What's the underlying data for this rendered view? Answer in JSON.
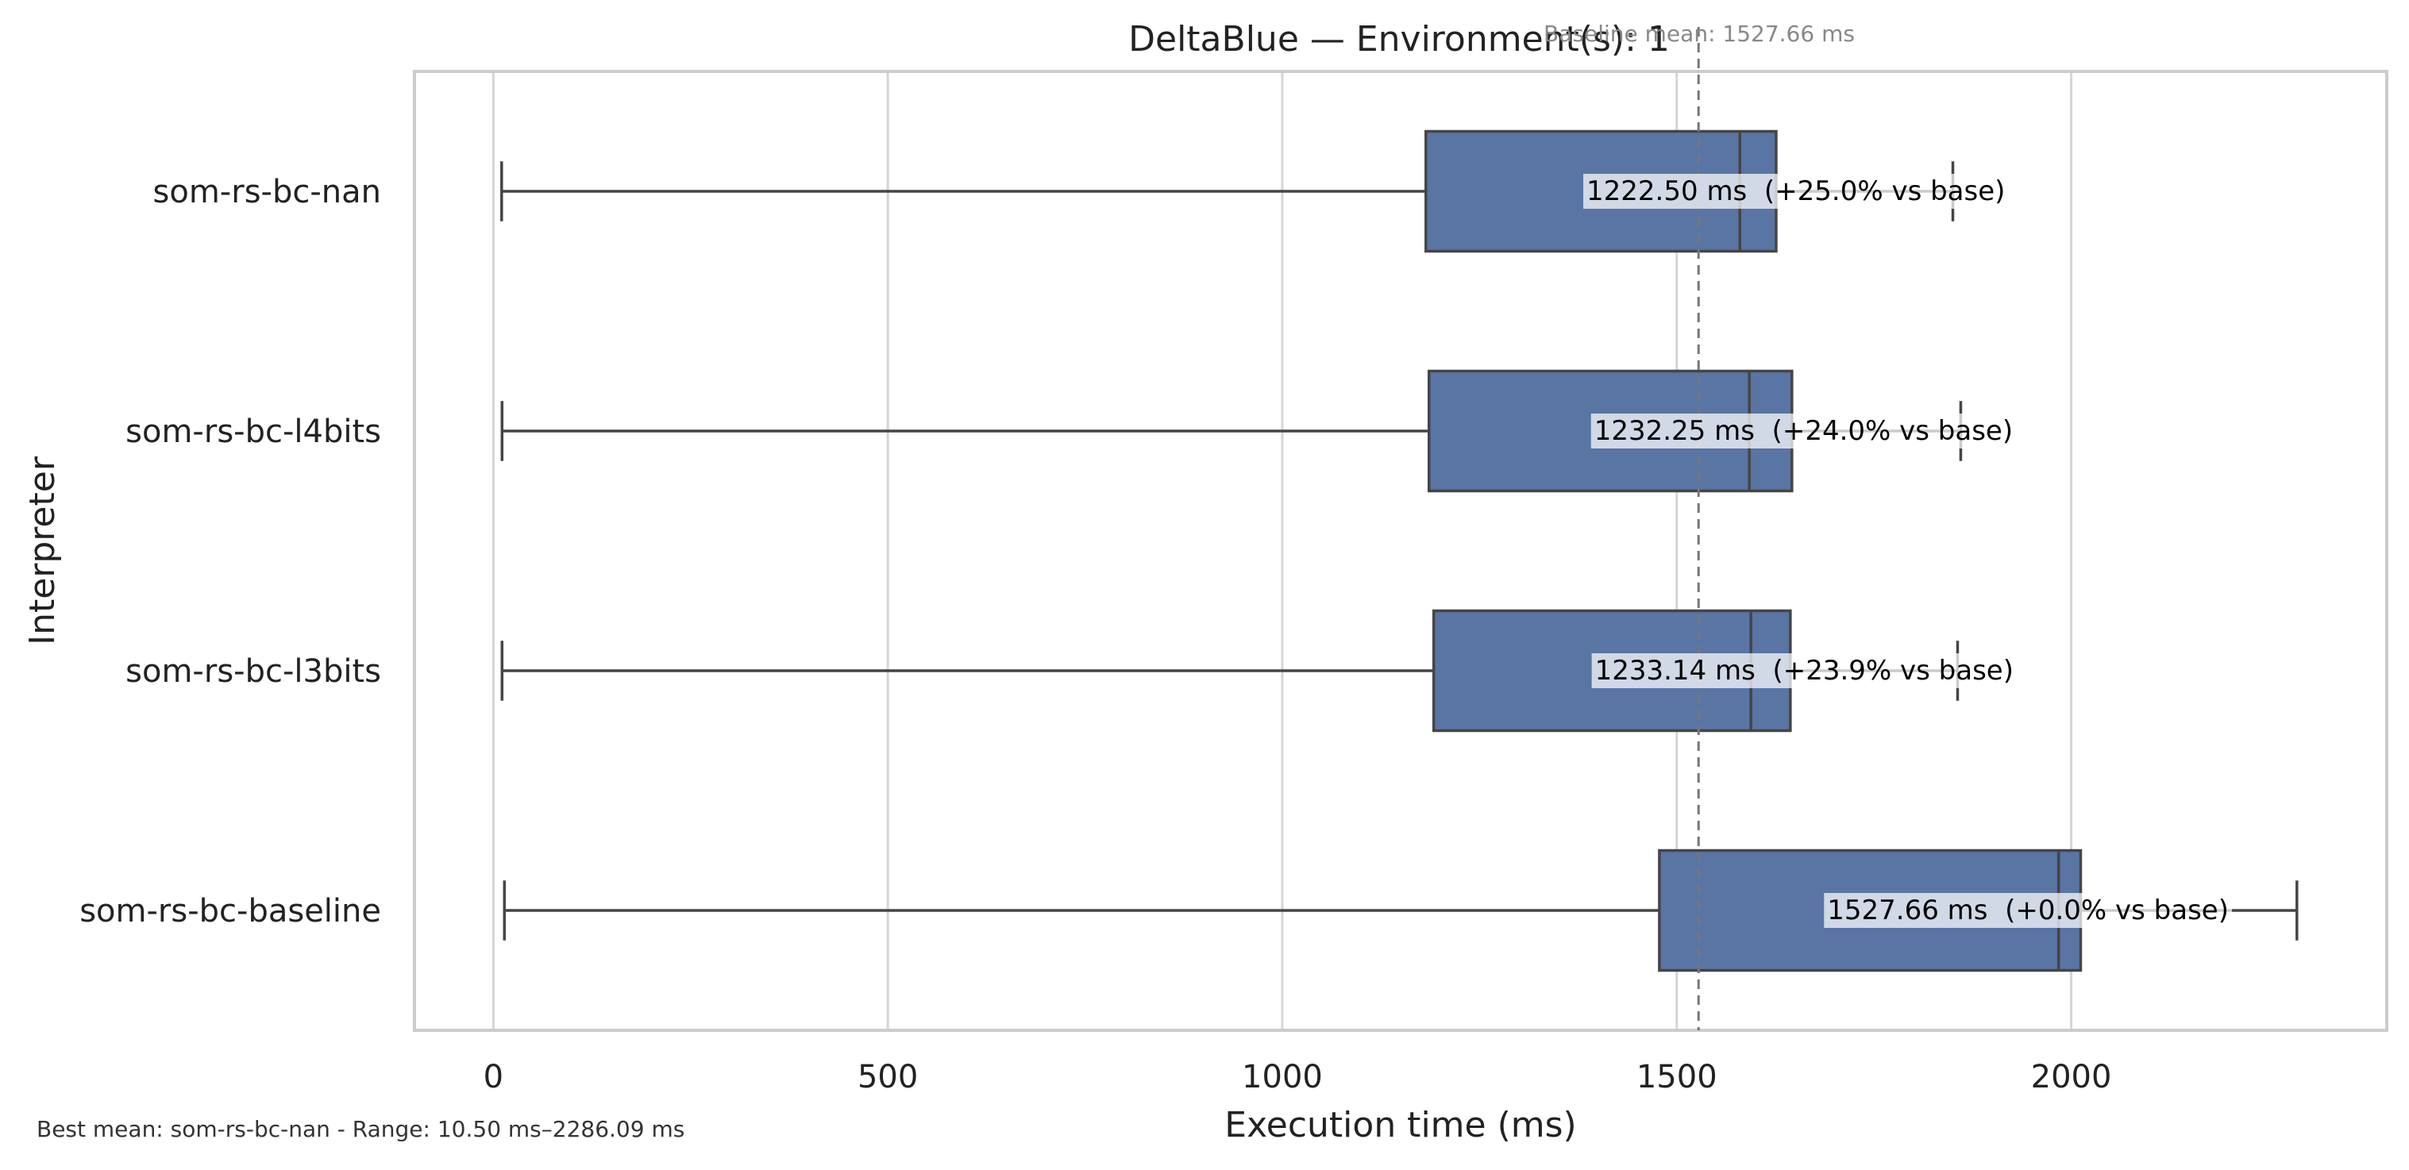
{
  "chart_data": {
    "type": "box",
    "orientation": "horizontal",
    "title": "DeltaBlue — Environment(s): 1",
    "xlabel": "Execution time (ms)",
    "ylabel": "Interpreter",
    "xlim": [
      -100,
      2400
    ],
    "xticks": [
      0,
      500,
      1000,
      1500,
      2000
    ],
    "xtick_labels": [
      "0",
      "500",
      "1000",
      "1500",
      "2000"
    ],
    "grid": "vertical",
    "baseline": {
      "value": 1527.66,
      "label": "Baseline mean: 1527.66 ms",
      "style": "dashed"
    },
    "box_color": "#5975a4",
    "series": [
      {
        "name": "som-rs-bc-nan",
        "whisker_low": 10.5,
        "q1": 1182,
        "median": 1580,
        "q3": 1626,
        "whisker_high": 1850,
        "mean": 1222.5,
        "annotation": "1222.50 ms  (+25.0% vs base)"
      },
      {
        "name": "som-rs-bc-l4bits",
        "whisker_low": 11,
        "q1": 1186,
        "median": 1592,
        "q3": 1646,
        "whisker_high": 1860,
        "mean": 1232.25,
        "annotation": "1232.25 ms  (+24.0% vs base)"
      },
      {
        "name": "som-rs-bc-l3bits",
        "whisker_low": 11,
        "q1": 1192,
        "median": 1594,
        "q3": 1644,
        "whisker_high": 1856,
        "mean": 1233.14,
        "annotation": "1233.14 ms  (+23.9% vs base)"
      },
      {
        "name": "som-rs-bc-baseline",
        "whisker_low": 14,
        "q1": 1478,
        "median": 1984,
        "q3": 2012,
        "whisker_high": 2286.09,
        "mean": 1527.66,
        "annotation": "1527.66 ms  (+0.0% vs base)"
      }
    ]
  },
  "footnote": "Best mean: som-rs-bc-nan - Range: 10.50 ms–2286.09 ms"
}
